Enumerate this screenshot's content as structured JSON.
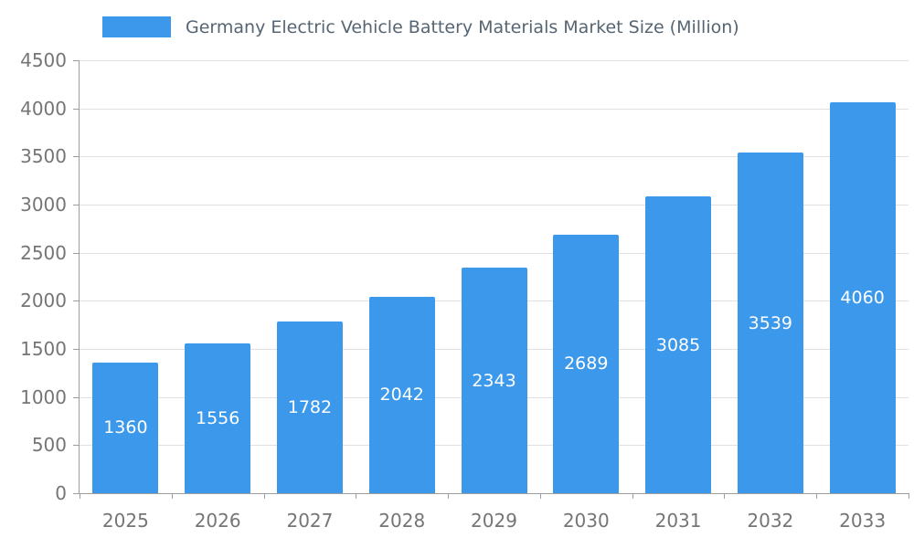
{
  "legend": {
    "label": "Germany Electric Vehicle Battery Materials Market Size (Million)"
  },
  "chart_data": {
    "type": "bar",
    "title": "Germany Electric Vehicle Battery Materials Market Size (Million)",
    "categories": [
      "2025",
      "2026",
      "2027",
      "2028",
      "2029",
      "2030",
      "2031",
      "2032",
      "2033"
    ],
    "values": [
      1360,
      1556,
      1782,
      2042,
      2343,
      2689,
      3085,
      3539,
      4060
    ],
    "value_labels": [
      "1360",
      "1556",
      "1782",
      "2042",
      "2343",
      "2689",
      "3085",
      "3539",
      "4060"
    ],
    "xlabel": "",
    "ylabel": "",
    "ylim": [
      0,
      4500
    ],
    "ytick_step": 500,
    "yticks": [
      0,
      500,
      1000,
      1500,
      2000,
      2500,
      3000,
      3500,
      4000,
      4500
    ],
    "grid": true,
    "legend_position": "top",
    "bar_color": "#3B98EB",
    "value_label_color": "#FFFFFF"
  },
  "colors": {
    "background": "#FFFFFF",
    "bar": "#3B98EB",
    "title_text": "#566573",
    "axis_text": "#757575",
    "grid_line": "#E0E0E0",
    "axis_line": "#9E9E9E"
  }
}
